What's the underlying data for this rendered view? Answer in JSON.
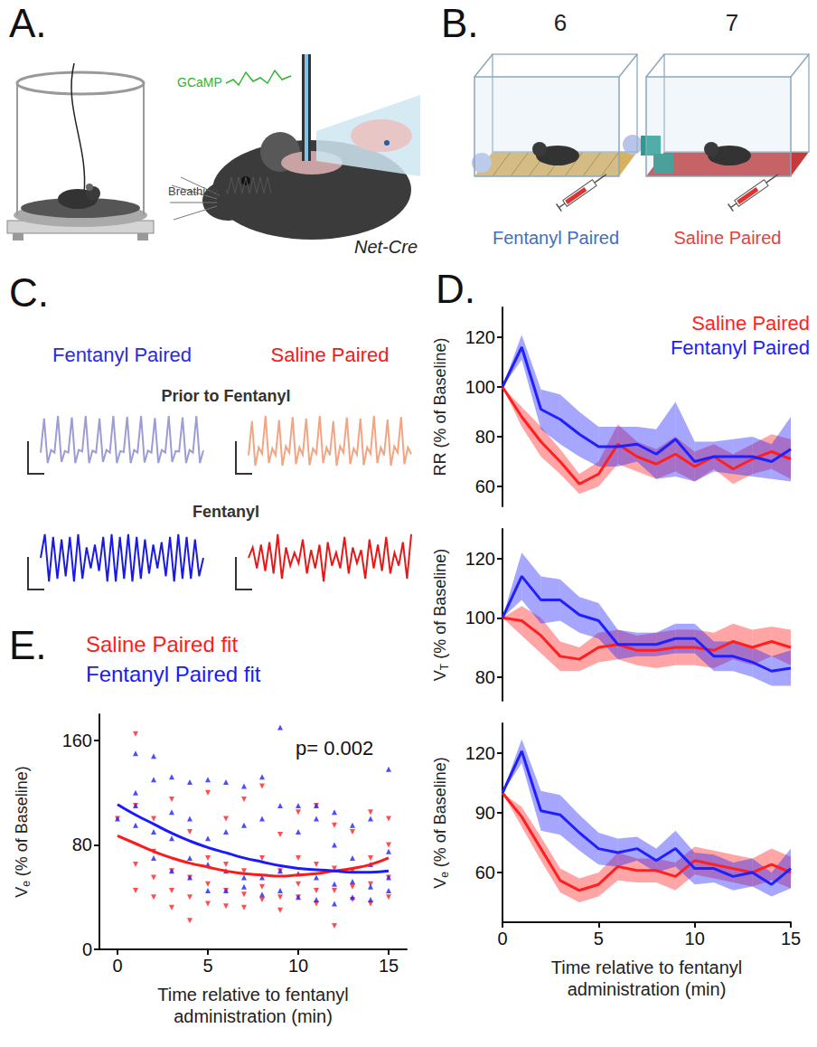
{
  "panel_letters": [
    "A.",
    "B.",
    "C.",
    "D.",
    "E."
  ],
  "panel_a": {
    "signal_label": "GCaMP",
    "breathing_label": "Breathing",
    "genotype": "Net-Cre"
  },
  "panel_b": {
    "sessions": [
      {
        "number": 6,
        "label": "Fentanyl Paired",
        "color": "#3d6fc4"
      },
      {
        "number": 7,
        "label": "Saline Paired",
        "color": "#e8413a"
      }
    ]
  },
  "panel_c": {
    "columns": [
      {
        "label": "Fentanyl Paired",
        "color": "#2a2ae0"
      },
      {
        "label": "Saline Paired",
        "color": "#f01a1a"
      }
    ],
    "rows": [
      {
        "label": "Prior to Fentanyl",
        "traces": [
          {
            "color": "#9c9cd6",
            "values": [
              0.3,
              0.95,
              0.1,
              0.35,
              0.3,
              1.0,
              0.12,
              0.33,
              0.3,
              0.97,
              0.1,
              0.35,
              0.32,
              1.0,
              0.1,
              0.34,
              0.3,
              0.95,
              0.12,
              0.35,
              0.3,
              1.0,
              0.1,
              0.33,
              0.31,
              0.98,
              0.1,
              0.35,
              0.3,
              1.0,
              0.11,
              0.34,
              0.3,
              0.96,
              0.1,
              0.35,
              0.3,
              1.0,
              0.12,
              0.33,
              0.32,
              0.97,
              0.1,
              0.35,
              0.3,
              1.0,
              0.1,
              0.34
            ]
          },
          {
            "color": "#f2a582",
            "values": [
              0.25,
              0.9,
              0.05,
              0.4,
              0.28,
              1.0,
              0.1,
              0.38,
              0.25,
              0.92,
              0.05,
              0.42,
              0.3,
              0.98,
              0.08,
              0.4,
              0.26,
              0.95,
              0.06,
              0.38,
              0.28,
              1.0,
              0.1,
              0.4,
              0.25,
              0.9,
              0.05,
              0.42,
              0.3,
              0.97,
              0.08,
              0.38,
              0.26,
              0.95,
              0.06,
              0.4,
              0.28,
              1.0,
              0.1,
              0.4,
              0.25,
              0.93,
              0.05,
              0.42,
              0.3,
              0.98,
              0.08,
              0.4,
              0.27
            ]
          }
        ]
      },
      {
        "label": "Fentanyl",
        "traces": [
          {
            "color": "#1a1ae6",
            "values": [
              0.5,
              0.95,
              0.05,
              0.9,
              0.1,
              0.85,
              0.15,
              0.9,
              0.05,
              0.95,
              0.1,
              0.7,
              0.3,
              0.75,
              0.25,
              0.9,
              0.05,
              0.95,
              0.05,
              0.9,
              0.1,
              0.95,
              0.05,
              0.9,
              0.1,
              0.85,
              0.2,
              0.75,
              0.3,
              0.8,
              0.15,
              0.9,
              0.05,
              0.95,
              0.1,
              0.9,
              0.1,
              0.85,
              0.15,
              0.5
            ]
          },
          {
            "color": "#e81818",
            "values": [
              0.5,
              0.7,
              0.3,
              0.75,
              0.25,
              0.8,
              0.2,
              0.95,
              0.1,
              0.7,
              0.35,
              0.6,
              0.4,
              0.85,
              0.2,
              0.65,
              0.3,
              0.75,
              0.05,
              0.8,
              0.35,
              0.6,
              0.3,
              0.9,
              0.2,
              0.7,
              0.4,
              0.65,
              0.1,
              0.85,
              0.3,
              0.75,
              0.25,
              0.9,
              0.2,
              0.6,
              0.35,
              0.8,
              0.1,
              0.95
            ]
          }
        ]
      }
    ]
  },
  "chart_data": [
    {
      "type": "line",
      "x": [
        0,
        1,
        2,
        3,
        4,
        5,
        6,
        7,
        8,
        9,
        10,
        11,
        12,
        13,
        14,
        15
      ],
      "xlim": [
        0,
        15
      ],
      "ylim": [
        52,
        132
      ],
      "yticks": [
        60,
        80,
        100,
        120
      ],
      "y_label": "RR (% of Baseline)",
      "tick_labels": "y",
      "grid": false,
      "legend": "top-right",
      "series": [
        {
          "name": "Saline Paired",
          "color": "#ff1f1f",
          "values": [
            100,
            88,
            78,
            70,
            61,
            65,
            77,
            72,
            69,
            73,
            68,
            72,
            67,
            71,
            74,
            71
          ],
          "error": [
            0,
            4,
            6,
            5,
            4,
            5,
            8,
            6,
            6,
            7,
            6,
            5,
            6,
            6,
            7,
            8
          ]
        },
        {
          "name": "Fentanyl Paired",
          "color": "#2020ff",
          "values": [
            100,
            116,
            91,
            87,
            81,
            76,
            76,
            77,
            73,
            79,
            70,
            72,
            72,
            72,
            70,
            75
          ],
          "error": [
            0,
            5,
            8,
            10,
            9,
            8,
            8,
            7,
            10,
            15,
            8,
            6,
            7,
            8,
            7,
            13
          ]
        }
      ]
    },
    {
      "type": "line",
      "x": [
        0,
        1,
        2,
        3,
        4,
        5,
        6,
        7,
        8,
        9,
        10,
        11,
        12,
        13,
        14,
        15
      ],
      "xlim": [
        0,
        15
      ],
      "ylim": [
        72,
        130
      ],
      "yticks": [
        80,
        100,
        120
      ],
      "y_label": "VT (% of Baseline)",
      "tick_labels": "y",
      "grid": false,
      "series": [
        {
          "name": "Saline Paired",
          "color": "#ff1f1f",
          "values": [
            100,
            99,
            94,
            87,
            86,
            90,
            91,
            89,
            89,
            90,
            90,
            89,
            92,
            90,
            92,
            90
          ],
          "error": [
            0,
            5,
            6,
            5,
            4,
            5,
            5,
            5,
            6,
            6,
            6,
            6,
            6,
            6,
            5,
            6
          ]
        },
        {
          "name": "Fentanyl Paired",
          "color": "#2020ff",
          "values": [
            100,
            114,
            106,
            106,
            101,
            99,
            91,
            91,
            91,
            93,
            93,
            87,
            87,
            85,
            82,
            83
          ],
          "error": [
            0,
            8,
            8,
            7,
            6,
            6,
            5,
            4,
            4,
            5,
            5,
            5,
            5,
            5,
            5,
            6
          ]
        }
      ]
    },
    {
      "type": "line",
      "x": [
        0,
        1,
        2,
        3,
        4,
        5,
        6,
        7,
        8,
        9,
        10,
        11,
        12,
        13,
        14,
        15
      ],
      "xlim": [
        0,
        15
      ],
      "xticks": [
        0,
        5,
        10,
        15
      ],
      "ylim": [
        35,
        135
      ],
      "yticks": [
        60,
        90,
        120
      ],
      "y_label": "Ve (% of Baseline)",
      "x_label": "Time relative to fentanyl administration (min)",
      "grid": false,
      "series": [
        {
          "name": "Saline Paired",
          "color": "#ff1f1f",
          "values": [
            100,
            88,
            72,
            56,
            51,
            54,
            63,
            61,
            61,
            58,
            66,
            64,
            62,
            60,
            64,
            60
          ],
          "error": [
            0,
            5,
            6,
            6,
            6,
            6,
            7,
            6,
            6,
            7,
            7,
            7,
            7,
            7,
            8,
            8
          ]
        },
        {
          "name": "Fentanyl Paired",
          "color": "#2020ff",
          "values": [
            100,
            121,
            91,
            89,
            80,
            72,
            70,
            72,
            66,
            72,
            62,
            62,
            58,
            60,
            54,
            62
          ],
          "error": [
            0,
            6,
            10,
            10,
            9,
            8,
            7,
            6,
            6,
            9,
            8,
            7,
            7,
            7,
            6,
            10
          ]
        }
      ]
    },
    {
      "type": "scatter",
      "xlim": [
        -1,
        16
      ],
      "xticks": [
        0,
        5,
        10,
        15
      ],
      "ylim": [
        0,
        180
      ],
      "yticks": [
        0,
        80,
        160
      ],
      "y_label": "Ve (% of Baseline)",
      "x_label": "Time relative to fentanyl administration (min)",
      "grid": false,
      "legend": "top-left",
      "annotation": "p= 0.002",
      "series": [
        {
          "type": "scatter",
          "color": "#ff2020",
          "marker": "triangle_down",
          "x": [
            0,
            1,
            1,
            1,
            1,
            2,
            2,
            2,
            2,
            3,
            3,
            3,
            3,
            4,
            4,
            4,
            4,
            5,
            5,
            5,
            5,
            6,
            6,
            6,
            6,
            7,
            7,
            7,
            7,
            8,
            8,
            8,
            8,
            9,
            9,
            9,
            9,
            10,
            10,
            10,
            10,
            11,
            11,
            11,
            11,
            12,
            12,
            12,
            12,
            13,
            13,
            13,
            13,
            14,
            14,
            14,
            14,
            15,
            15,
            15,
            15
          ],
          "values": [
            100,
            165,
            110,
            65,
            45,
            100,
            75,
            55,
            40,
            115,
            60,
            45,
            32,
            90,
            55,
            40,
            22,
            120,
            70,
            50,
            35,
            100,
            65,
            45,
            33,
            115,
            60,
            42,
            32,
            125,
            70,
            48,
            38,
            88,
            60,
            40,
            30,
            105,
            70,
            50,
            40,
            110,
            65,
            45,
            35,
            95,
            62,
            45,
            18,
            90,
            60,
            48,
            38,
            105,
            70,
            50,
            35,
            100,
            80,
            55,
            40
          ]
        },
        {
          "type": "scatter",
          "color": "#2020ff",
          "marker": "triangle",
          "x": [
            0,
            1,
            1,
            1,
            1,
            2,
            2,
            2,
            2,
            3,
            3,
            3,
            3,
            4,
            4,
            4,
            4,
            5,
            5,
            5,
            5,
            6,
            6,
            6,
            6,
            7,
            7,
            7,
            7,
            8,
            8,
            8,
            8,
            9,
            9,
            9,
            9,
            10,
            10,
            10,
            10,
            11,
            11,
            11,
            11,
            12,
            12,
            12,
            12,
            13,
            13,
            13,
            13,
            14,
            14,
            14,
            14,
            15,
            15,
            15,
            15
          ],
          "values": [
            100,
            150,
            120,
            110,
            95,
            148,
            130,
            90,
            70,
            132,
            105,
            85,
            60,
            128,
            100,
            70,
            55,
            130,
            85,
            65,
            45,
            128,
            90,
            60,
            45,
            125,
            95,
            55,
            48,
            132,
            100,
            55,
            42,
            170,
            110,
            60,
            45,
            110,
            90,
            58,
            40,
            110,
            100,
            55,
            38,
            105,
            80,
            50,
            35,
            95,
            70,
            52,
            40,
            100,
            65,
            48,
            38,
            138,
            75,
            55,
            45
          ]
        },
        {
          "name": "Saline Paired fit",
          "type": "line",
          "color": "#ff1a1a",
          "x": [
            0,
            1,
            2,
            3,
            4,
            5,
            6,
            7,
            8,
            9,
            10,
            11,
            12,
            13,
            14,
            15
          ],
          "values": [
            87,
            81,
            75,
            70,
            66,
            63,
            60,
            58,
            57,
            56,
            57,
            58,
            60,
            62,
            65,
            70
          ]
        },
        {
          "name": "Fentanyl Paired fit",
          "type": "line",
          "color": "#1a1aff",
          "x": [
            0,
            1,
            2,
            3,
            4,
            5,
            6,
            7,
            8,
            9,
            10,
            11,
            12,
            13,
            14,
            15
          ],
          "values": [
            111,
            103,
            96,
            89,
            83,
            78,
            74,
            70,
            67,
            64,
            62,
            61,
            60,
            59,
            59,
            60
          ]
        }
      ]
    }
  ]
}
